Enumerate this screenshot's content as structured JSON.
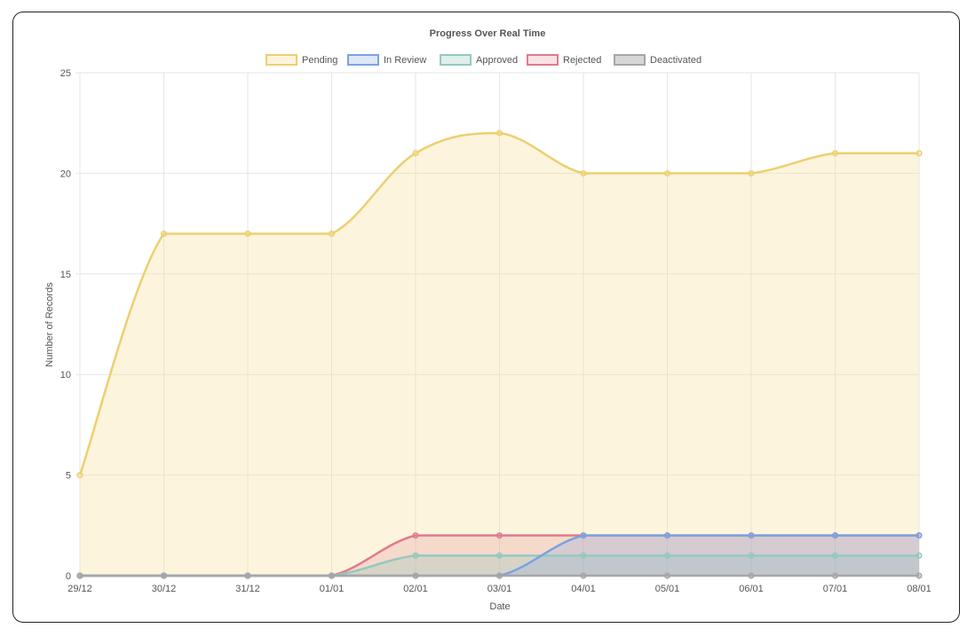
{
  "chart_data": {
    "type": "line",
    "title": "Progress Over Real Time",
    "xlabel": "Date",
    "ylabel": "Number of Records",
    "ylim": [
      0,
      25
    ],
    "yticks": [
      0,
      5,
      10,
      15,
      20,
      25
    ],
    "categories": [
      "29/12",
      "30/12",
      "31/12",
      "01/01",
      "02/01",
      "03/01",
      "04/01",
      "05/01",
      "06/01",
      "07/01",
      "08/01"
    ],
    "legend_position": "top",
    "grid": true,
    "filled": true,
    "series": [
      {
        "name": "Pending",
        "color": "#ecd06f",
        "fill": "rgba(245,222,150,0.32)",
        "values": [
          5,
          17,
          17,
          17,
          21,
          22,
          20,
          20,
          20,
          21,
          21
        ]
      },
      {
        "name": "In Review",
        "color": "#7aa3e0",
        "fill": "rgba(122,163,224,0.25)",
        "values": [
          0,
          0,
          0,
          0,
          0,
          0,
          2,
          2,
          2,
          2,
          2
        ]
      },
      {
        "name": "Approved",
        "color": "#93c9c0",
        "fill": "rgba(147,201,192,0.3)",
        "values": [
          0,
          0,
          0,
          0,
          1,
          1,
          1,
          1,
          1,
          1,
          1
        ]
      },
      {
        "name": "Rejected",
        "color": "#e07a8d",
        "fill": "rgba(224,122,141,0.22)",
        "values": [
          0,
          0,
          0,
          0,
          2,
          2,
          2,
          2,
          2,
          2,
          2
        ]
      },
      {
        "name": "Deactivated",
        "color": "#a6a6a6",
        "fill": "rgba(166,166,166,0.45)",
        "values": [
          0,
          0,
          0,
          0,
          0,
          0,
          0,
          0,
          0,
          0,
          0
        ]
      }
    ]
  }
}
